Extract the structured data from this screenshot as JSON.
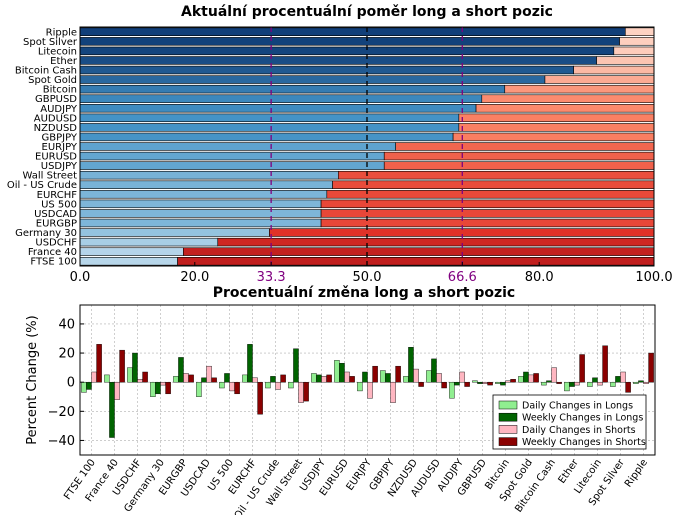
{
  "chart_data": [
    {
      "type": "bar",
      "orientation": "horizontal-stacked-100",
      "title": "Aktuální procentuální poměr long a short pozic",
      "categories": [
        "Ripple",
        "Spot Silver",
        "Litecoin",
        "Ether",
        "Bitcoin Cash",
        "Spot Gold",
        "Bitcoin",
        "GBPUSD",
        "AUDJPY",
        "AUDUSD",
        "NZDUSD",
        "GBPJPY",
        "EURJPY",
        "EURUSD",
        "USDJPY",
        "Wall Street",
        "Oil - US Crude",
        "EURCHF",
        "US 500",
        "USDCAD",
        "EURGBP",
        "Germany 30",
        "USDCHF",
        "France 40",
        "FTSE 100"
      ],
      "series": [
        {
          "values": [
            95,
            94,
            93,
            90,
            86,
            81,
            74,
            70,
            69,
            66,
            66,
            65,
            55,
            53,
            53,
            45,
            44,
            43,
            42,
            42,
            42,
            33,
            24,
            18,
            17
          ]
        },
        {
          "values": [
            5,
            6,
            7,
            10,
            14,
            19,
            26,
            30,
            31,
            34,
            34,
            35,
            45,
            47,
            47,
            55,
            56,
            57,
            58,
            58,
            58,
            67,
            76,
            82,
            83
          ]
        }
      ],
      "xlim": [
        0,
        100
      ],
      "xticks": [
        "0.0",
        "20.0",
        "33.3",
        "50.0",
        "66.6",
        "80.0",
        "100.0"
      ],
      "reference_lines": [
        33.3,
        50,
        66.6
      ],
      "reference_colors": {
        "33.3": "#800080",
        "50": "#000000",
        "66.6": "#800080"
      }
    },
    {
      "type": "bar",
      "title": "Procentuální změna long a short pozic",
      "ylabel": "Percent Change (%)",
      "ylim": [
        -50,
        53
      ],
      "yticks": [
        "−40",
        "−20",
        "0",
        "20",
        "40"
      ],
      "categories": [
        "FTSE 100",
        "France 40",
        "USDCHF",
        "Germany 30",
        "EURGBP",
        "USDCAD",
        "US 500",
        "EURCHF",
        "Oil - US Crude",
        "Wall Street",
        "USDJPY",
        "EURUSD",
        "EURJPY",
        "GBPJPY",
        "NZDUSD",
        "AUDUSD",
        "AUDJPY",
        "GBPUSD",
        "Bitcoin",
        "Spot Gold",
        "Bitcoin Cash",
        "Ether",
        "Litecoin",
        "Spot Silver",
        "Ripple"
      ],
      "series": [
        {
          "name": "Daily Changes in Longs",
          "color": "#90ee90",
          "values": [
            -7,
            5,
            10,
            -10,
            4,
            -10,
            -4,
            5,
            -4,
            -4,
            6,
            15,
            -6,
            8,
            4,
            8,
            -11,
            1,
            -1,
            4,
            -2,
            -6,
            -3,
            -3,
            -1
          ]
        },
        {
          "name": "Weekly Changes in Longs",
          "color": "#006400",
          "values": [
            -5,
            -38,
            20,
            -8,
            17,
            3,
            6,
            26,
            4,
            23,
            5,
            13,
            7,
            6,
            24,
            16,
            -2,
            -1,
            -2,
            7,
            1,
            -3,
            3,
            4,
            1
          ]
        },
        {
          "name": "Daily Changes in Shorts",
          "color": "#ffb6c1",
          "values": [
            7,
            -12,
            2,
            -2,
            6,
            11,
            -6,
            3,
            -5,
            -14,
            4,
            7,
            -11,
            -14,
            9,
            6,
            7,
            -1,
            1,
            5,
            10,
            -2,
            -2,
            7,
            -1
          ]
        },
        {
          "name": "Weekly Changes in Shorts",
          "color": "#8b0000",
          "values": [
            26,
            22,
            7,
            -8,
            5,
            3,
            -8,
            -22,
            5,
            -13,
            5,
            4,
            11,
            11,
            -3,
            -4,
            -3,
            -2,
            2,
            6,
            -1,
            19,
            25,
            -7,
            20
          ]
        }
      ],
      "legend_position": "lower-right",
      "grid": true
    }
  ]
}
